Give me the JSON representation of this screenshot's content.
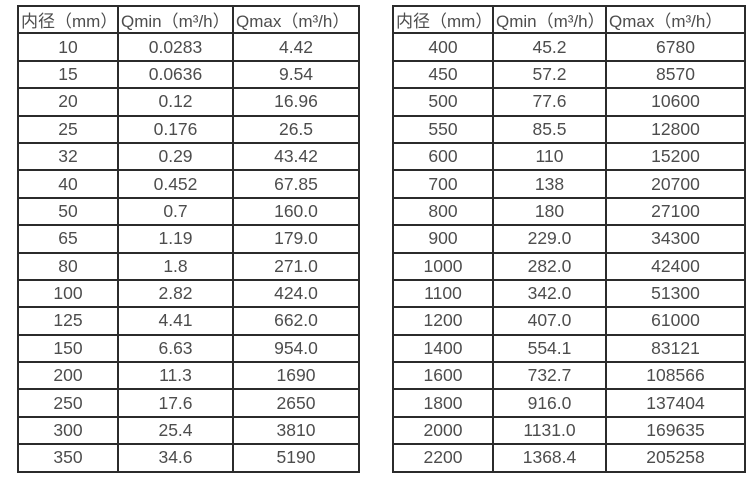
{
  "page": {
    "background": "#ffffff",
    "text_color": "#4d4d4d",
    "border_color": "#2b2b2b"
  },
  "left_table": {
    "headers": [
      "内径（mm）",
      "Qmin（m³/h）",
      "Qmax（m³/h）"
    ],
    "rows": [
      [
        "10",
        "0.0283",
        "4.42"
      ],
      [
        "15",
        "0.0636",
        "9.54"
      ],
      [
        "20",
        "0.12",
        "16.96"
      ],
      [
        "25",
        "0.176",
        "26.5"
      ],
      [
        "32",
        "0.29",
        "43.42"
      ],
      [
        "40",
        "0.452",
        "67.85"
      ],
      [
        "50",
        "0.7",
        "160.0"
      ],
      [
        "65",
        "1.19",
        "179.0"
      ],
      [
        "80",
        "1.8",
        "271.0"
      ],
      [
        "100",
        "2.82",
        "424.0"
      ],
      [
        "125",
        "4.41",
        "662.0"
      ],
      [
        "150",
        "6.63",
        "954.0"
      ],
      [
        "200",
        "11.3",
        "1690"
      ],
      [
        "250",
        "17.6",
        "2650"
      ],
      [
        "300",
        "25.4",
        "3810"
      ],
      [
        "350",
        "34.6",
        "5190"
      ]
    ]
  },
  "right_table": {
    "headers": [
      "内径（mm）",
      "Qmin（m³/h）",
      "Qmax（m³/h）"
    ],
    "rows": [
      [
        "400",
        "45.2",
        "6780"
      ],
      [
        "450",
        "57.2",
        "8570"
      ],
      [
        "500",
        "77.6",
        "10600"
      ],
      [
        "550",
        "85.5",
        "12800"
      ],
      [
        "600",
        "110",
        "15200"
      ],
      [
        "700",
        "138",
        "20700"
      ],
      [
        "800",
        "180",
        "27100"
      ],
      [
        "900",
        "229.0",
        "34300"
      ],
      [
        "1000",
        "282.0",
        "42400"
      ],
      [
        "1100",
        "342.0",
        "51300"
      ],
      [
        "1200",
        "407.0",
        "61000"
      ],
      [
        "1400",
        "554.1",
        "83121"
      ],
      [
        "1600",
        "732.7",
        "108566"
      ],
      [
        "1800",
        "916.0",
        "137404"
      ],
      [
        "2000",
        "1131.0",
        "169635"
      ],
      [
        "2200",
        "1368.4",
        "205258"
      ]
    ]
  }
}
